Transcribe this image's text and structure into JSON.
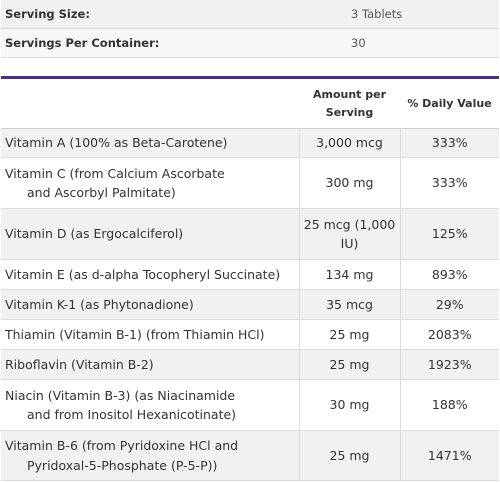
{
  "serving": [
    {
      "label": "Serving Size:",
      "value": "3 Tablets"
    },
    {
      "label": "Servings Per Container:",
      "value": "30"
    }
  ],
  "nutrients": {
    "headers": {
      "nutrient": "",
      "amount": "Amount per Serving",
      "dv": "% Daily Value"
    },
    "rows": [
      {
        "name": "Vitamin A (100% as Beta-Carotene)",
        "name2": "",
        "amount": "3,000 mcg",
        "dv": "333%"
      },
      {
        "name": "Vitamin C (from Calcium Ascorbate",
        "name2": "and Ascorbyl Palmitate)",
        "amount": "300 mg",
        "dv": "333%"
      },
      {
        "name": "Vitamin D (as Ergocalciferol)",
        "name2": "",
        "amount": "25 mcg (1,000 IU)",
        "dv": "125%"
      },
      {
        "name": "Vitamin E (as d-alpha Tocopheryl Succinate)",
        "name2": "",
        "amount": "134 mg",
        "dv": "893%"
      },
      {
        "name": "Vitamin K-1 (as Phytonadione)",
        "name2": "",
        "amount": "35 mcg",
        "dv": "29%"
      },
      {
        "name": "Thiamin (Vitamin B-1) (from Thiamin HCl)",
        "name2": "",
        "amount": "25 mg",
        "dv": "2083%"
      },
      {
        "name": "Riboflavin (Vitamin B-2)",
        "name2": "",
        "amount": "25 mg",
        "dv": "1923%"
      },
      {
        "name": "Niacin (Vitamin B-3) (as Niacinamide",
        "name2": "and from Inositol Hexanicotinate)",
        "amount": "30 mg",
        "dv": "188%"
      },
      {
        "name": "Vitamin B-6 (from Pyridoxine HCl and",
        "name2": "Pyridoxal-5-Phosphate (P-5-P))",
        "amount": "25 mg",
        "dv": "1471%"
      }
    ]
  },
  "colors": {
    "accent_bar": "#4b2e83"
  }
}
